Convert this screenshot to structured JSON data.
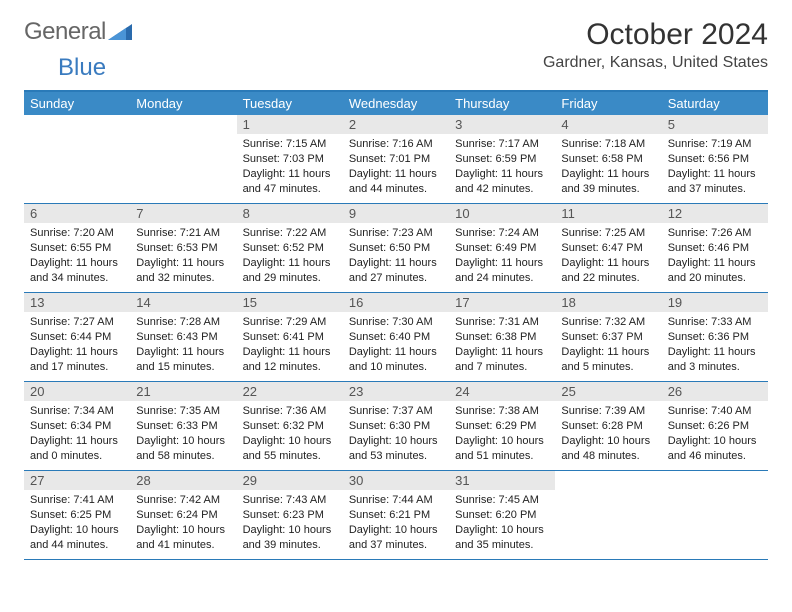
{
  "logo": {
    "part1": "General",
    "part2": "Blue"
  },
  "title": "October 2024",
  "location": "Gardner, Kansas, United States",
  "colors": {
    "header_bar": "#3a8ac6",
    "header_border": "#2a7ab8",
    "daynum_bg": "#e8e8e8",
    "text": "#222222",
    "logo_gray": "#666666",
    "logo_blue": "#3a7bbf"
  },
  "dow": [
    "Sunday",
    "Monday",
    "Tuesday",
    "Wednesday",
    "Thursday",
    "Friday",
    "Saturday"
  ],
  "weeks": [
    [
      null,
      null,
      {
        "n": "1",
        "sr": "Sunrise: 7:15 AM",
        "ss": "Sunset: 7:03 PM",
        "d1": "Daylight: 11 hours",
        "d2": "and 47 minutes."
      },
      {
        "n": "2",
        "sr": "Sunrise: 7:16 AM",
        "ss": "Sunset: 7:01 PM",
        "d1": "Daylight: 11 hours",
        "d2": "and 44 minutes."
      },
      {
        "n": "3",
        "sr": "Sunrise: 7:17 AM",
        "ss": "Sunset: 6:59 PM",
        "d1": "Daylight: 11 hours",
        "d2": "and 42 minutes."
      },
      {
        "n": "4",
        "sr": "Sunrise: 7:18 AM",
        "ss": "Sunset: 6:58 PM",
        "d1": "Daylight: 11 hours",
        "d2": "and 39 minutes."
      },
      {
        "n": "5",
        "sr": "Sunrise: 7:19 AM",
        "ss": "Sunset: 6:56 PM",
        "d1": "Daylight: 11 hours",
        "d2": "and 37 minutes."
      }
    ],
    [
      {
        "n": "6",
        "sr": "Sunrise: 7:20 AM",
        "ss": "Sunset: 6:55 PM",
        "d1": "Daylight: 11 hours",
        "d2": "and 34 minutes."
      },
      {
        "n": "7",
        "sr": "Sunrise: 7:21 AM",
        "ss": "Sunset: 6:53 PM",
        "d1": "Daylight: 11 hours",
        "d2": "and 32 minutes."
      },
      {
        "n": "8",
        "sr": "Sunrise: 7:22 AM",
        "ss": "Sunset: 6:52 PM",
        "d1": "Daylight: 11 hours",
        "d2": "and 29 minutes."
      },
      {
        "n": "9",
        "sr": "Sunrise: 7:23 AM",
        "ss": "Sunset: 6:50 PM",
        "d1": "Daylight: 11 hours",
        "d2": "and 27 minutes."
      },
      {
        "n": "10",
        "sr": "Sunrise: 7:24 AM",
        "ss": "Sunset: 6:49 PM",
        "d1": "Daylight: 11 hours",
        "d2": "and 24 minutes."
      },
      {
        "n": "11",
        "sr": "Sunrise: 7:25 AM",
        "ss": "Sunset: 6:47 PM",
        "d1": "Daylight: 11 hours",
        "d2": "and 22 minutes."
      },
      {
        "n": "12",
        "sr": "Sunrise: 7:26 AM",
        "ss": "Sunset: 6:46 PM",
        "d1": "Daylight: 11 hours",
        "d2": "and 20 minutes."
      }
    ],
    [
      {
        "n": "13",
        "sr": "Sunrise: 7:27 AM",
        "ss": "Sunset: 6:44 PM",
        "d1": "Daylight: 11 hours",
        "d2": "and 17 minutes."
      },
      {
        "n": "14",
        "sr": "Sunrise: 7:28 AM",
        "ss": "Sunset: 6:43 PM",
        "d1": "Daylight: 11 hours",
        "d2": "and 15 minutes."
      },
      {
        "n": "15",
        "sr": "Sunrise: 7:29 AM",
        "ss": "Sunset: 6:41 PM",
        "d1": "Daylight: 11 hours",
        "d2": "and 12 minutes."
      },
      {
        "n": "16",
        "sr": "Sunrise: 7:30 AM",
        "ss": "Sunset: 6:40 PM",
        "d1": "Daylight: 11 hours",
        "d2": "and 10 minutes."
      },
      {
        "n": "17",
        "sr": "Sunrise: 7:31 AM",
        "ss": "Sunset: 6:38 PM",
        "d1": "Daylight: 11 hours",
        "d2": "and 7 minutes."
      },
      {
        "n": "18",
        "sr": "Sunrise: 7:32 AM",
        "ss": "Sunset: 6:37 PM",
        "d1": "Daylight: 11 hours",
        "d2": "and 5 minutes."
      },
      {
        "n": "19",
        "sr": "Sunrise: 7:33 AM",
        "ss": "Sunset: 6:36 PM",
        "d1": "Daylight: 11 hours",
        "d2": "and 3 minutes."
      }
    ],
    [
      {
        "n": "20",
        "sr": "Sunrise: 7:34 AM",
        "ss": "Sunset: 6:34 PM",
        "d1": "Daylight: 11 hours",
        "d2": "and 0 minutes."
      },
      {
        "n": "21",
        "sr": "Sunrise: 7:35 AM",
        "ss": "Sunset: 6:33 PM",
        "d1": "Daylight: 10 hours",
        "d2": "and 58 minutes."
      },
      {
        "n": "22",
        "sr": "Sunrise: 7:36 AM",
        "ss": "Sunset: 6:32 PM",
        "d1": "Daylight: 10 hours",
        "d2": "and 55 minutes."
      },
      {
        "n": "23",
        "sr": "Sunrise: 7:37 AM",
        "ss": "Sunset: 6:30 PM",
        "d1": "Daylight: 10 hours",
        "d2": "and 53 minutes."
      },
      {
        "n": "24",
        "sr": "Sunrise: 7:38 AM",
        "ss": "Sunset: 6:29 PM",
        "d1": "Daylight: 10 hours",
        "d2": "and 51 minutes."
      },
      {
        "n": "25",
        "sr": "Sunrise: 7:39 AM",
        "ss": "Sunset: 6:28 PM",
        "d1": "Daylight: 10 hours",
        "d2": "and 48 minutes."
      },
      {
        "n": "26",
        "sr": "Sunrise: 7:40 AM",
        "ss": "Sunset: 6:26 PM",
        "d1": "Daylight: 10 hours",
        "d2": "and 46 minutes."
      }
    ],
    [
      {
        "n": "27",
        "sr": "Sunrise: 7:41 AM",
        "ss": "Sunset: 6:25 PM",
        "d1": "Daylight: 10 hours",
        "d2": "and 44 minutes."
      },
      {
        "n": "28",
        "sr": "Sunrise: 7:42 AM",
        "ss": "Sunset: 6:24 PM",
        "d1": "Daylight: 10 hours",
        "d2": "and 41 minutes."
      },
      {
        "n": "29",
        "sr": "Sunrise: 7:43 AM",
        "ss": "Sunset: 6:23 PM",
        "d1": "Daylight: 10 hours",
        "d2": "and 39 minutes."
      },
      {
        "n": "30",
        "sr": "Sunrise: 7:44 AM",
        "ss": "Sunset: 6:21 PM",
        "d1": "Daylight: 10 hours",
        "d2": "and 37 minutes."
      },
      {
        "n": "31",
        "sr": "Sunrise: 7:45 AM",
        "ss": "Sunset: 6:20 PM",
        "d1": "Daylight: 10 hours",
        "d2": "and 35 minutes."
      },
      null,
      null
    ]
  ]
}
